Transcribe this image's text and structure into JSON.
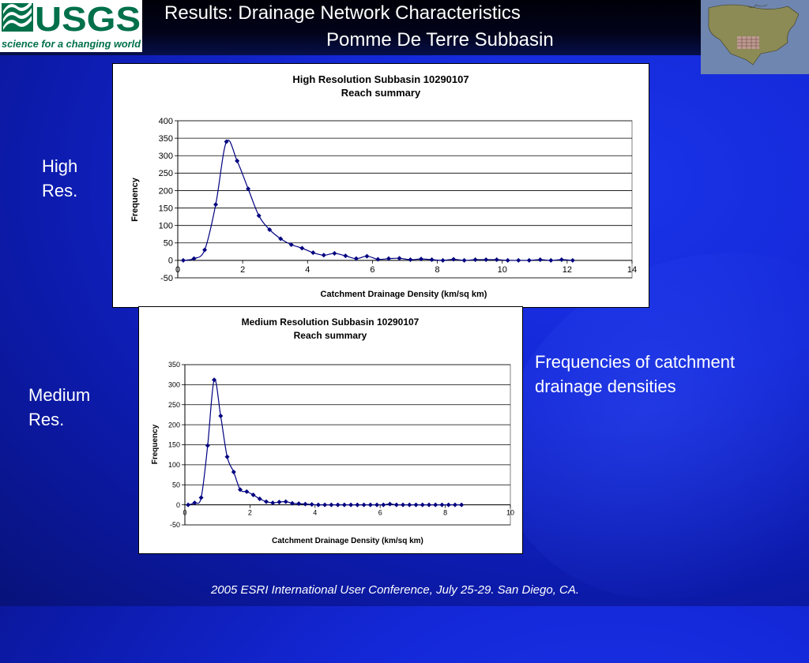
{
  "logo": {
    "text": "USGS",
    "tagline": "science for a changing world"
  },
  "header": {
    "title_line1": "Results: Drainage Network Characteristics",
    "title_line2": "Pomme De Terre Subbasin"
  },
  "labels": {
    "high": "High Res.",
    "medium": "Medium Res.",
    "note": "Frequencies of catchment drainage densities"
  },
  "footer": {
    "text": "2005 ESRI International User Conference, July 25-29.  San Diego, CA."
  },
  "colors": {
    "series": "#000080",
    "background": "#1428d8"
  },
  "chart_data": [
    {
      "type": "line",
      "title": "High Resolution Subbasin 10290107",
      "subtitle": "Reach summary",
      "xlabel": "Catchment Drainage Density (km/sq km)",
      "ylabel": "Frequency",
      "xlim": [
        0,
        14
      ],
      "ylim": [
        -50,
        400
      ],
      "xticks": [
        0,
        2,
        4,
        6,
        8,
        10,
        12,
        14
      ],
      "yticks": [
        -50,
        0,
        50,
        100,
        150,
        200,
        250,
        300,
        350,
        400
      ],
      "grid": true,
      "legend": false,
      "series": [
        {
          "x": [
            0.17,
            0.5,
            0.83,
            1.17,
            1.5,
            1.83,
            2.17,
            2.5,
            2.83,
            3.17,
            3.5,
            3.83,
            4.17,
            4.5,
            4.83,
            5.17,
            5.5,
            5.83,
            6.17,
            6.5,
            6.83,
            7.17,
            7.5,
            7.83,
            8.17,
            8.5,
            8.83,
            9.17,
            9.5,
            9.83,
            10.17,
            10.5,
            10.83,
            11.17,
            11.5,
            11.83,
            12.17
          ],
          "y": [
            0,
            5,
            30,
            160,
            340,
            285,
            205,
            128,
            88,
            62,
            45,
            35,
            22,
            15,
            20,
            13,
            5,
            12,
            3,
            5,
            6,
            2,
            4,
            2,
            0,
            3,
            0,
            2,
            2,
            2,
            0,
            0,
            0,
            2,
            0,
            2,
            0
          ]
        }
      ]
    },
    {
      "type": "line",
      "title": "Medium Resolution Subbasin 10290107",
      "subtitle": "Reach summary",
      "xlabel": "Catchment Drainage Density (km/sq km)",
      "ylabel": "Frequency",
      "xlim": [
        0,
        10
      ],
      "ylim": [
        -50,
        350
      ],
      "xticks": [
        0,
        2,
        4,
        6,
        8,
        10
      ],
      "yticks": [
        -50,
        0,
        50,
        100,
        150,
        200,
        250,
        300,
        350
      ],
      "grid": true,
      "legend": false,
      "series": [
        {
          "x": [
            0.1,
            0.3,
            0.5,
            0.7,
            0.9,
            1.1,
            1.3,
            1.5,
            1.7,
            1.9,
            2.1,
            2.3,
            2.5,
            2.7,
            2.9,
            3.1,
            3.3,
            3.5,
            3.7,
            3.9,
            4.1,
            4.3,
            4.5,
            4.7,
            4.9,
            5.1,
            5.3,
            5.5,
            5.7,
            5.9,
            6.1,
            6.3,
            6.5,
            6.7,
            6.9,
            7.1,
            7.3,
            7.5,
            7.7,
            7.9,
            8.1,
            8.3,
            8.5
          ],
          "y": [
            0,
            5,
            18,
            148,
            312,
            222,
            120,
            82,
            38,
            33,
            25,
            15,
            8,
            5,
            7,
            8,
            4,
            3,
            2,
            1,
            0,
            0,
            0,
            0,
            0,
            0,
            0,
            0,
            0,
            0,
            0,
            2,
            0,
            0,
            0,
            0,
            0,
            0,
            0,
            0,
            0,
            0,
            0
          ]
        }
      ]
    }
  ]
}
